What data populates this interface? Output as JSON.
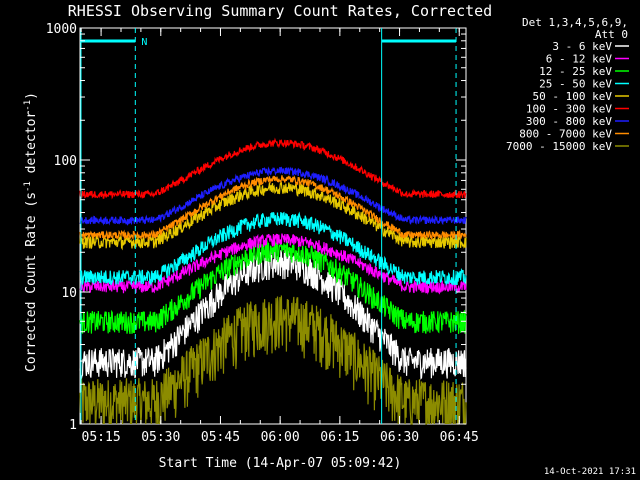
{
  "chart_data": {
    "type": "line",
    "title": "RHESSI Observing Summary Count Rates, Corrected",
    "xlabel": "Start Time (14-Apr-07 05:09:42)",
    "ylabel_main": "Corrected Count Rate (s",
    "ylabel_sup1": "-1",
    "ylabel_mid": " detector",
    "ylabel_sup2": "-1",
    "ylabel_end": ")",
    "yscale": "log",
    "ylim": [
      1,
      1000
    ],
    "y_ticks": [
      {
        "value": 1,
        "label": "1"
      },
      {
        "value": 10,
        "label": "10"
      },
      {
        "value": 100,
        "label": "100"
      },
      {
        "value": 1000,
        "label": "1000"
      }
    ],
    "x_range_min": [
      0,
      97
    ],
    "x_ticks": [
      {
        "min": 5.3,
        "label": "05:15"
      },
      {
        "min": 20.3,
        "label": "05:30"
      },
      {
        "min": 35.3,
        "label": "05:45"
      },
      {
        "min": 50.3,
        "label": "06:00"
      },
      {
        "min": 65.3,
        "label": "06:15"
      },
      {
        "min": 80.3,
        "label": "06:30"
      },
      {
        "min": 95.3,
        "label": "06:45"
      }
    ],
    "legend_header": [
      "Det 1,3,4,5,6,9,",
      "Att 0"
    ],
    "legend_position": "top-right, outside plot",
    "series": [
      {
        "name": "3 - 6 keV",
        "color": "#ffffff",
        "low": 3.0,
        "high": 17,
        "noise": 0.12
      },
      {
        "name": "6 - 12 keV",
        "color": "#ff00ff",
        "low": 11,
        "high": 25,
        "noise": 0.05
      },
      {
        "name": "12 - 25 keV",
        "color": "#00ff00",
        "low": 6,
        "high": 21,
        "noise": 0.09
      },
      {
        "name": "25 - 50 keV",
        "color": "#00ffff",
        "low": 13,
        "high": 36,
        "noise": 0.06
      },
      {
        "name": "50 - 100 keV",
        "color": "#e6c800",
        "low": 24,
        "high": 62,
        "noise": 0.05
      },
      {
        "name": "100 - 300 keV",
        "color": "#ff0000",
        "low": 55,
        "high": 135,
        "noise": 0.03
      },
      {
        "name": "300 - 800 keV",
        "color": "#1e1eff",
        "low": 35,
        "high": 83,
        "noise": 0.03
      },
      {
        "name": "800 - 7000 keV",
        "color": "#ff8c00",
        "low": 27,
        "high": 72,
        "noise": 0.03
      },
      {
        "name": "7000 - 15000 keV",
        "color": "#8c8c00",
        "low": 1.5,
        "high": 6.5,
        "noise": 0.22
      }
    ],
    "saa_flag": {
      "label": "N",
      "color": "#00ffff"
    },
    "saa_intervals_min": [
      [
        0,
        13.9
      ],
      [
        75.8,
        94.5
      ]
    ],
    "night_boundaries_min": [
      13.9,
      94.5
    ]
  },
  "timestamp": "14-Oct-2021 17:31",
  "colors": {
    "background": "#000000",
    "axes": "#ffffff",
    "flag": "#00ffff"
  }
}
